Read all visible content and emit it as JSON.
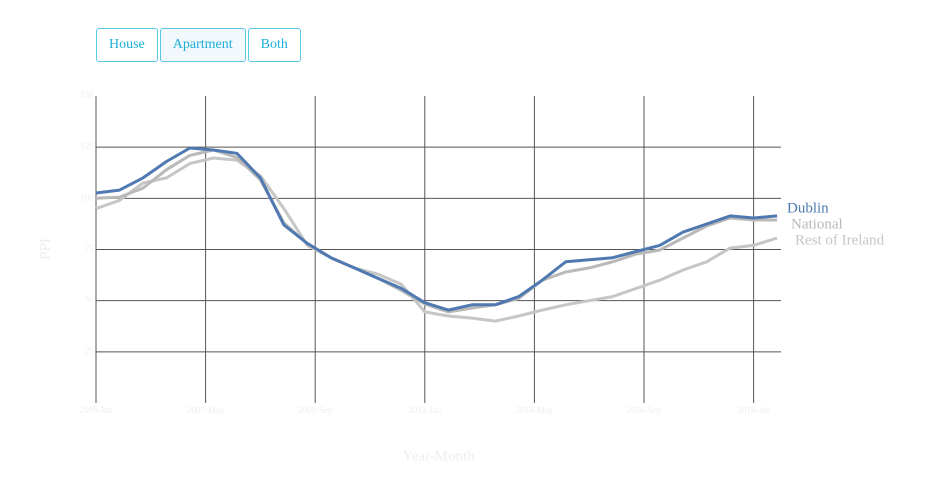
{
  "controls": {
    "buttons": [
      "House",
      "Apartment",
      "Both"
    ],
    "active": 1
  },
  "chart_data": {
    "type": "line",
    "x_label": "Year-Month",
    "y_label": "PPI",
    "x": [
      "2005-01",
      "2005-07",
      "2006-01",
      "2006-07",
      "2007-01",
      "2007-07",
      "2008-01",
      "2008-07",
      "2009-01",
      "2009-07",
      "2010-01",
      "2010-07",
      "2011-01",
      "2011-07",
      "2012-01",
      "2012-07",
      "2013-01",
      "2013-07",
      "2014-01",
      "2014-07",
      "2015-01",
      "2015-07",
      "2016-01",
      "2016-07",
      "2017-01",
      "2017-07",
      "2018-01",
      "2018-07",
      "2019-01",
      "2019-07"
    ],
    "series": [
      {
        "name": "Dublin",
        "color": "#4f79b0",
        "values": [
          102.6,
          104,
          110,
          118,
          124.6,
          123.6,
          122,
          110,
          87,
          78,
          71,
          66,
          61,
          56,
          49,
          45.4,
          48,
          48,
          52,
          60,
          69,
          70,
          71,
          74,
          77,
          83.5,
          87.4,
          91.4,
          90.4,
          91.4
        ]
      },
      {
        "name": "National",
        "color": "#b9b9b9",
        "values": [
          100,
          100.6,
          105,
          114,
          121,
          123.6,
          120,
          109,
          88,
          77.7,
          71,
          66,
          61,
          55,
          48.4,
          44.5,
          46.4,
          48,
          51,
          60,
          64,
          66,
          69,
          72.8,
          74.7,
          80.6,
          86.5,
          90.4,
          89.4,
          89.4
        ]
      },
      {
        "name": "Rest of Ireland",
        "color": "#c6c6c6",
        "values": [
          95,
          99,
          107.5,
          110,
          117,
          119.7,
          118.7,
          111,
          95,
          77,
          71,
          66,
          63,
          58,
          44.5,
          42.5,
          41.5,
          40,
          42.5,
          45.4,
          48,
          50,
          52,
          56,
          60,
          65,
          69,
          75.7,
          77,
          80.6
        ]
      }
    ],
    "xlim": [
      "2005-01",
      "2019-08"
    ],
    "xticks": [
      {
        "value": "2005-01",
        "label": "2005-Jan"
      },
      {
        "value": "2007-05",
        "label": "2007-May"
      },
      {
        "value": "2009-09",
        "label": "2009-Sep"
      },
      {
        "value": "2012-01",
        "label": "2012-Jan"
      },
      {
        "value": "2014-05",
        "label": "2014-May"
      },
      {
        "value": "2016-09",
        "label": "2016-Sep"
      },
      {
        "value": "2019-01",
        "label": "2019-Jan"
      }
    ],
    "ylim": [
      0,
      150
    ],
    "yticks": [
      25,
      50,
      75,
      100,
      125,
      150
    ],
    "grid": true
  }
}
